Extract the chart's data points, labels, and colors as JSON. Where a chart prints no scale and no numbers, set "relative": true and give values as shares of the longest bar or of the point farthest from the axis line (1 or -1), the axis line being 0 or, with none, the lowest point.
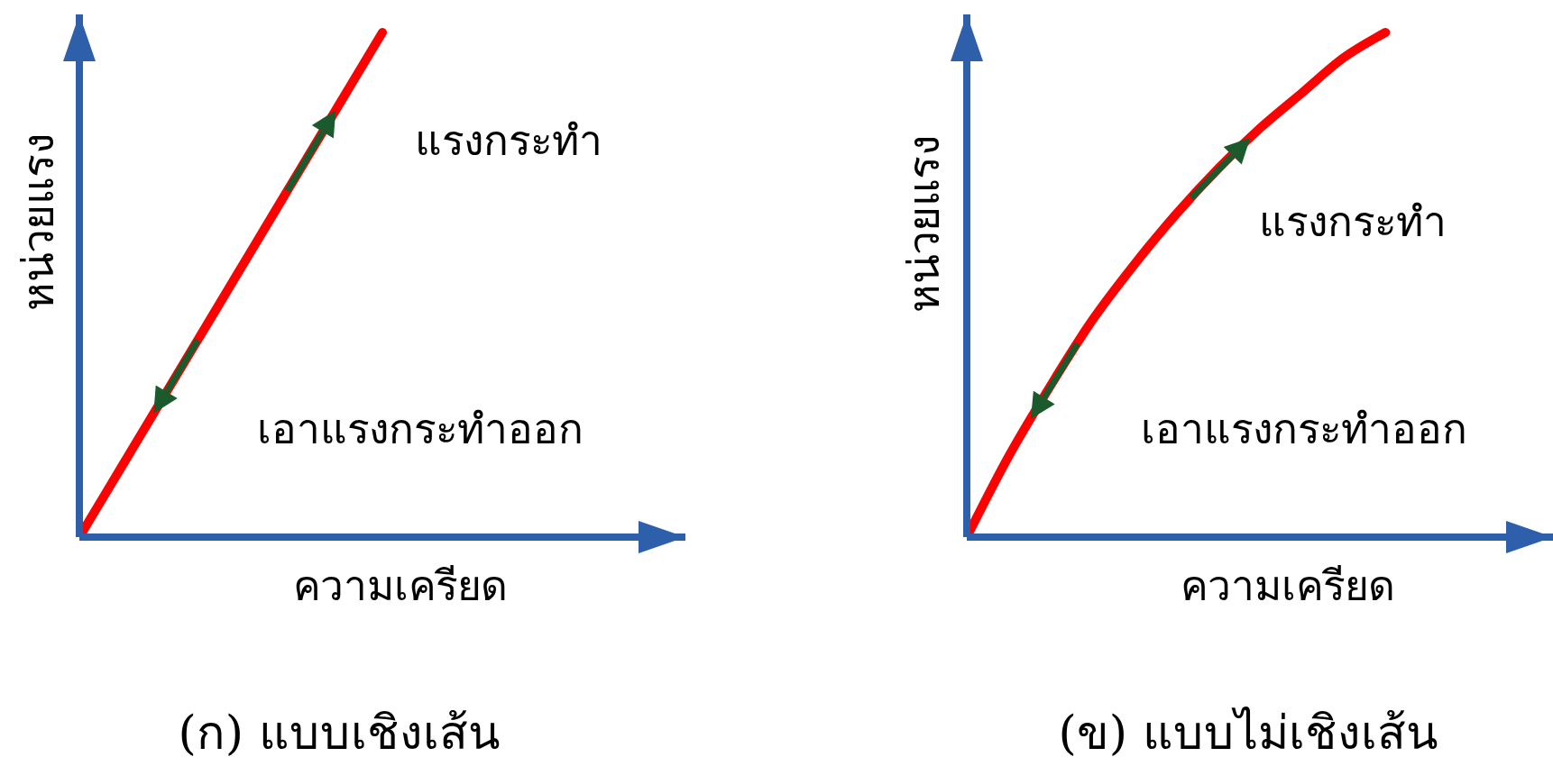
{
  "chart_data": [
    {
      "type": "line",
      "title": "(ก) แบบเชิงเส้น",
      "xlabel": "ความเครียด",
      "ylabel": "หน่วยแรง",
      "relative": true,
      "marker": "none",
      "categories": [
        null,
        null,
        null,
        null,
        null,
        null,
        null,
        null,
        null,
        null,
        null,
        null,
        null,
        null,
        null,
        null,
        null,
        null,
        null,
        null,
        null
      ],
      "series": [
        {
          "color": "#ff0000",
          "values": [
            0,
            0.1,
            0.2,
            0.3,
            0.4,
            0.5,
            0.6,
            0.7,
            0.8,
            0.9,
            1,
            null,
            null,
            null,
            null,
            null,
            null,
            null,
            null,
            null,
            null
          ]
        }
      ],
      "annotations": [
        "แรงกระทำ",
        "เอาแรงกระทำออก"
      ]
    },
    {
      "type": "line",
      "title": "(ข) แบบไม่เชิงเส้น",
      "xlabel": "ความเครียด",
      "ylabel": "หน่วยแรง",
      "relative": true,
      "marker": "none",
      "categories": [
        null,
        null,
        null,
        null,
        null,
        null,
        null,
        null,
        null,
        null,
        null,
        null,
        null,
        null,
        null
      ],
      "series": [
        {
          "color": "#ff0000",
          "values": [
            0,
            0.16,
            0.3,
            0.43,
            0.54,
            0.64,
            0.73,
            0.81,
            0.88,
            0.95,
            1,
            null,
            null,
            null,
            null
          ]
        }
      ],
      "annotations": [
        "แรงกระทำ",
        "เอาแรงกระทำออก"
      ]
    }
  ]
}
